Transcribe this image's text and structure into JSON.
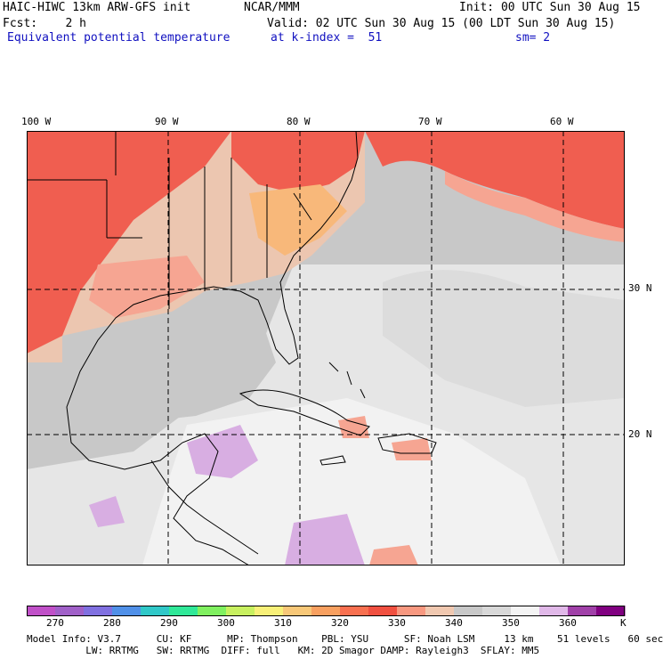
{
  "header": {
    "model_title": "HAIC-HIWC 13km ARW-GFS init",
    "org": "NCAR/MMM",
    "init": "Init: 00 UTC Sun 30 Aug 15",
    "fcst": "Fcst:    2 h",
    "valid": "Valid: 02 UTC Sun 30 Aug 15 (00 LDT Sun 30 Aug 15)",
    "field": "Equivalent potential temperature",
    "level": "at k-index =  51",
    "smoothing": "sm= 2"
  },
  "map": {
    "lon_labels": [
      "100 W",
      "90 W",
      "80 W",
      "70 W",
      "60 W"
    ],
    "lat_labels": [
      "30 N",
      "20 N"
    ],
    "colors": {
      "ocean_gray": "#c8c8c8",
      "light_gray": "#e8e8e8",
      "white_zone": "#f4f4f4",
      "tan": "#ecc6b0",
      "salmon": "#f6a592",
      "red": "#f05e50",
      "orange": "#f8b87a",
      "lavender": "#d8aee2",
      "grid": "#000000"
    }
  },
  "colorbar": {
    "unit": "K",
    "tick_labels": [
      "270",
      "280",
      "290",
      "300",
      "310",
      "320",
      "330",
      "340",
      "350",
      "360"
    ],
    "colors": [
      "#c050c8",
      "#a060c8",
      "#8070e0",
      "#5090e8",
      "#30c8c8",
      "#30e898",
      "#80f060",
      "#c8f060",
      "#f8f078",
      "#f8c878",
      "#f8a060",
      "#f87050",
      "#f05040",
      "#f89880",
      "#f0c8b0",
      "#c8c8c8",
      "#d8d8d8",
      "#f4f4f4",
      "#e0b8e8",
      "#a040a8",
      "#800080"
    ]
  },
  "footer": {
    "line1": "Model Info: V3.7      CU: KF      MP: Thompson    PBL: YSU      SF: Noah LSM     13 km    51 levels   60 sec",
    "line2": "          LW: RRTMG   SW: RRTMG  DIFF: full   KM: 2D Smagor DAMP: Rayleigh3  SFLAY: MM5"
  }
}
